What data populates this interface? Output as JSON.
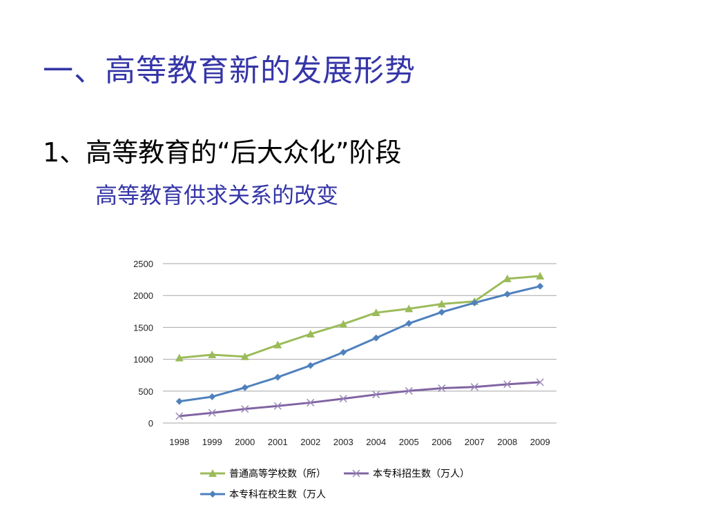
{
  "slide": {
    "title": "一、高等教育新的发展形势",
    "subtitle": "1、高等教育的“后大众化”阶段",
    "subsubtitle": "高等教育供求关系的改变"
  },
  "colors": {
    "title": "#3535a8",
    "grid": "#a6a6a6",
    "series_green": "#9bbb59",
    "series_purple": "#8064a2",
    "series_blue": "#4f81bd"
  },
  "chart_data": {
    "type": "line",
    "title": "",
    "xlabel": "",
    "ylabel": "",
    "ylim": [
      0,
      2500
    ],
    "yticks": [
      "0",
      "500",
      "1000",
      "1500",
      "2000",
      "2500"
    ],
    "categories": [
      "1998",
      "1999",
      "2000",
      "2001",
      "2002",
      "2003",
      "2004",
      "2005",
      "2006",
      "2007",
      "2008",
      "2009"
    ],
    "grid": true,
    "legend_position": "bottom",
    "series": [
      {
        "name": "普通高等学校数（所）",
        "marker": "triangle",
        "color": "#9bbb59",
        "values": [
          1022,
          1071,
          1041,
          1225,
          1396,
          1552,
          1731,
          1792,
          1867,
          1908,
          2263,
          2305
        ]
      },
      {
        "name": "本专科招生数（万人）",
        "marker": "x",
        "color": "#8064a2",
        "values": [
          108,
          160,
          220,
          268,
          320,
          382,
          447,
          504,
          546,
          566,
          608,
          640
        ]
      },
      {
        "name": "本专科在校生数（万人",
        "marker": "diamond",
        "color": "#4f81bd",
        "values": [
          340,
          413,
          556,
          719,
          903,
          1109,
          1334,
          1562,
          1739,
          1885,
          2021,
          2145
        ]
      }
    ]
  }
}
